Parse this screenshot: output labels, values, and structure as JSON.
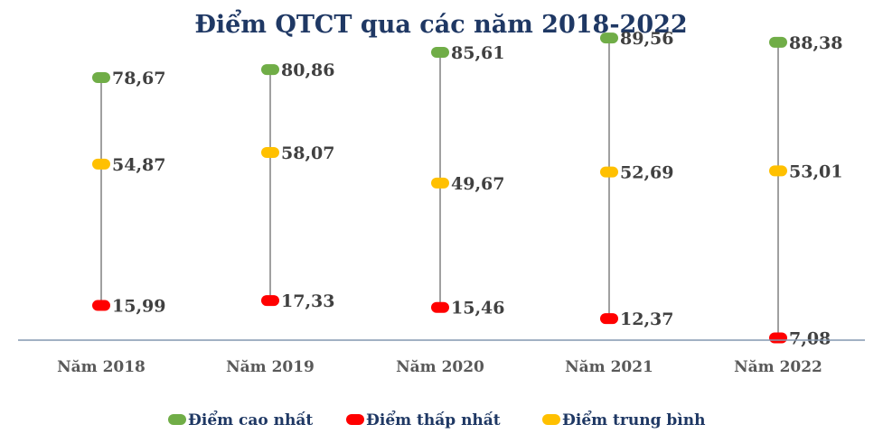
{
  "chart_data": {
    "type": "line",
    "title": "Điểm QTCT qua các năm 2018-2022",
    "categories": [
      "Năm 2018",
      "Năm 2019",
      "Năm 2020",
      "Năm 2021",
      "Năm 2022"
    ],
    "series": [
      {
        "name": "Điểm cao nhất",
        "color": "#70ad47",
        "values": [
          78.67,
          80.86,
          85.61,
          89.56,
          88.38
        ],
        "labels": [
          "78,67",
          "80,86",
          "85,61",
          "89,56",
          "88,38"
        ]
      },
      {
        "name": "Điểm thấp nhất",
        "color": "#ff0000",
        "values": [
          15.99,
          17.33,
          15.46,
          12.37,
          7.08
        ],
        "labels": [
          "15,99",
          "17,33",
          "15,46",
          "12,37",
          "7,08"
        ]
      },
      {
        "name": "Điểm trung bình",
        "color": "#ffc000",
        "values": [
          54.87,
          58.07,
          49.67,
          52.69,
          53.01
        ],
        "labels": [
          "54,87",
          "58,07",
          "49,67",
          "52,69",
          "53,01"
        ]
      }
    ],
    "ylim": [
      0,
      100
    ],
    "grid": false,
    "legend": "bottom"
  }
}
